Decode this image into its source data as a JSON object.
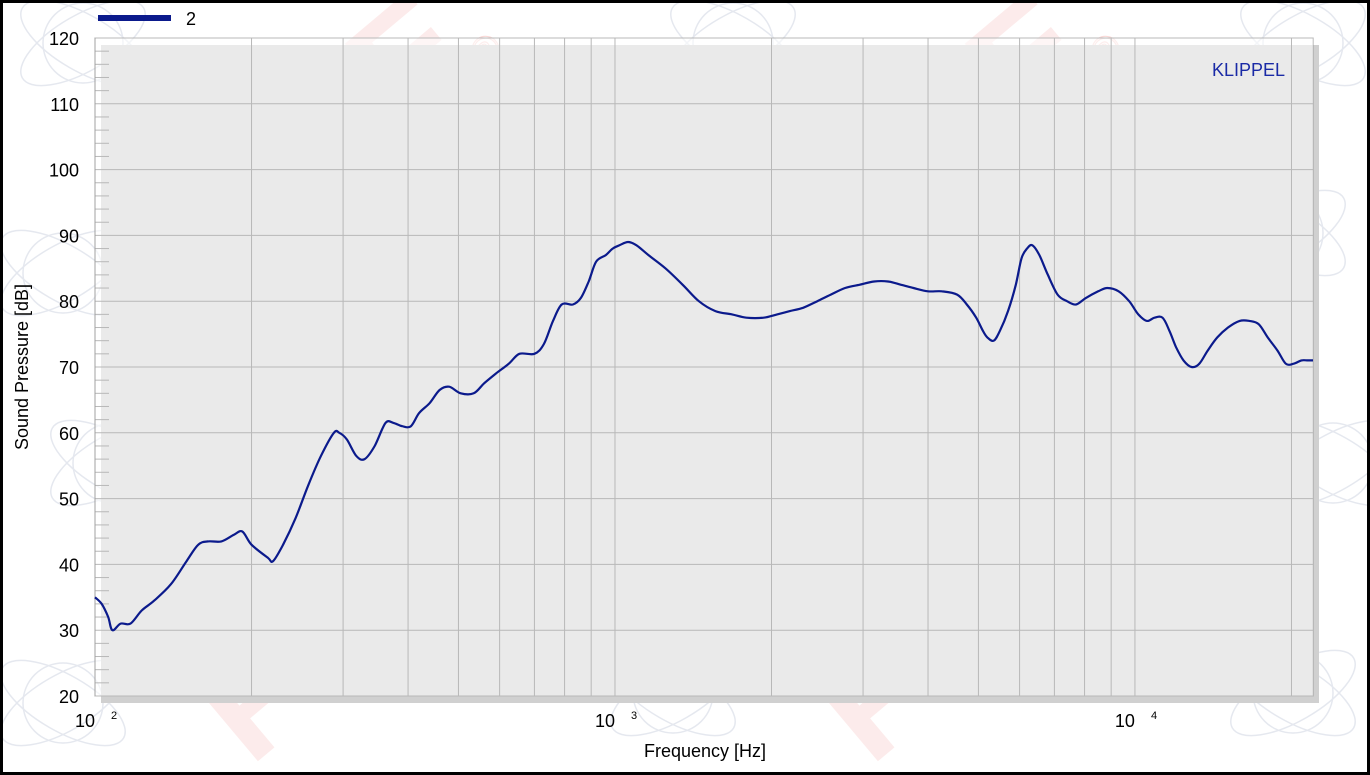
{
  "chart_data": {
    "type": "line",
    "title": "",
    "xlabel": "Frequency  [Hz]",
    "ylabel": "Sound Pressure  [dB]",
    "x_scale": "log",
    "xlim": [
      100,
      22000
    ],
    "ylim": [
      20,
      120
    ],
    "y_ticks": [
      "20",
      "30",
      "40",
      "50",
      "60",
      "70",
      "80",
      "90",
      "100",
      "110",
      "120"
    ],
    "x_ticks": [
      {
        "base": "10",
        "exp": "2",
        "value": 100
      },
      {
        "base": "10",
        "exp": "3",
        "value": 1000
      },
      {
        "base": "10",
        "exp": "4",
        "value": 10000
      }
    ],
    "grid": true,
    "legend_position": "top-left",
    "series": [
      {
        "name": "2",
        "color": "#0b1a8c",
        "points": [
          [
            100,
            35.0
          ],
          [
            103,
            34.0
          ],
          [
            106,
            32.0
          ],
          [
            108,
            30.0
          ],
          [
            112,
            31.0
          ],
          [
            117,
            31.0
          ],
          [
            123,
            33.0
          ],
          [
            130,
            34.5
          ],
          [
            140,
            37.0
          ],
          [
            150,
            40.5
          ],
          [
            158,
            43.0
          ],
          [
            165,
            43.5
          ],
          [
            175,
            43.5
          ],
          [
            185,
            44.5
          ],
          [
            192,
            45.0
          ],
          [
            200,
            43.0
          ],
          [
            215,
            41.0
          ],
          [
            220,
            40.5
          ],
          [
            230,
            43.0
          ],
          [
            243,
            47.0
          ],
          [
            257,
            52.0
          ],
          [
            272,
            56.5
          ],
          [
            288,
            60.0
          ],
          [
            295,
            60.0
          ],
          [
            305,
            59.0
          ],
          [
            318,
            56.5
          ],
          [
            330,
            56.0
          ],
          [
            345,
            58.0
          ],
          [
            362,
            61.5
          ],
          [
            375,
            61.5
          ],
          [
            390,
            61.0
          ],
          [
            405,
            61.0
          ],
          [
            420,
            63.0
          ],
          [
            440,
            64.5
          ],
          [
            460,
            66.5
          ],
          [
            480,
            67.0
          ],
          [
            505,
            66.0
          ],
          [
            535,
            66.0
          ],
          [
            560,
            67.5
          ],
          [
            590,
            69.0
          ],
          [
            625,
            70.5
          ],
          [
            655,
            72.0
          ],
          [
            700,
            72.0
          ],
          [
            730,
            73.5
          ],
          [
            760,
            77.0
          ],
          [
            790,
            79.5
          ],
          [
            830,
            79.5
          ],
          [
            860,
            80.5
          ],
          [
            890,
            83.0
          ],
          [
            920,
            86.0
          ],
          [
            960,
            87.0
          ],
          [
            990,
            88.0
          ],
          [
            1020,
            88.5
          ],
          [
            1060,
            89.0
          ],
          [
            1100,
            88.5
          ],
          [
            1160,
            87.0
          ],
          [
            1250,
            85.0
          ],
          [
            1350,
            82.5
          ],
          [
            1450,
            80.0
          ],
          [
            1560,
            78.5
          ],
          [
            1680,
            78.0
          ],
          [
            1790,
            77.5
          ],
          [
            1930,
            77.5
          ],
          [
            2050,
            78.0
          ],
          [
            2170,
            78.5
          ],
          [
            2300,
            79.0
          ],
          [
            2450,
            80.0
          ],
          [
            2600,
            81.0
          ],
          [
            2770,
            82.0
          ],
          [
            2950,
            82.5
          ],
          [
            3150,
            83.0
          ],
          [
            3350,
            83.0
          ],
          [
            3550,
            82.5
          ],
          [
            3750,
            82.0
          ],
          [
            4000,
            81.5
          ],
          [
            4250,
            81.5
          ],
          [
            4550,
            81.0
          ],
          [
            4750,
            79.5
          ],
          [
            4950,
            77.5
          ],
          [
            5100,
            75.5
          ],
          [
            5200,
            74.5
          ],
          [
            5350,
            74.0
          ],
          [
            5500,
            75.5
          ],
          [
            5700,
            78.5
          ],
          [
            5900,
            82.5
          ],
          [
            6050,
            86.5
          ],
          [
            6200,
            88.0
          ],
          [
            6350,
            88.5
          ],
          [
            6550,
            87.0
          ],
          [
            6800,
            84.0
          ],
          [
            7100,
            81.0
          ],
          [
            7400,
            80.0
          ],
          [
            7700,
            79.5
          ],
          [
            8050,
            80.5
          ],
          [
            8500,
            81.5
          ],
          [
            8850,
            82.0
          ],
          [
            9300,
            81.5
          ],
          [
            9750,
            80.0
          ],
          [
            10150,
            78.0
          ],
          [
            10550,
            77.0
          ],
          [
            10900,
            77.5
          ],
          [
            11300,
            77.5
          ],
          [
            11650,
            75.5
          ],
          [
            12000,
            73.0
          ],
          [
            12400,
            71.0
          ],
          [
            12850,
            70.0
          ],
          [
            13300,
            70.5
          ],
          [
            13800,
            72.5
          ],
          [
            14400,
            74.5
          ],
          [
            15100,
            76.0
          ],
          [
            15900,
            77.0
          ],
          [
            16600,
            77.0
          ],
          [
            17300,
            76.5
          ],
          [
            18000,
            74.5
          ],
          [
            18800,
            72.5
          ],
          [
            19500,
            70.5
          ],
          [
            20200,
            70.5
          ],
          [
            20900,
            71.0
          ],
          [
            21500,
            71.0
          ],
          [
            22000,
            71.0
          ]
        ]
      }
    ],
    "annotations": [
      "KLIPPEL"
    ]
  },
  "watermark": {
    "text": "FCE",
    "mark": "®",
    "color": "#e8322a"
  }
}
